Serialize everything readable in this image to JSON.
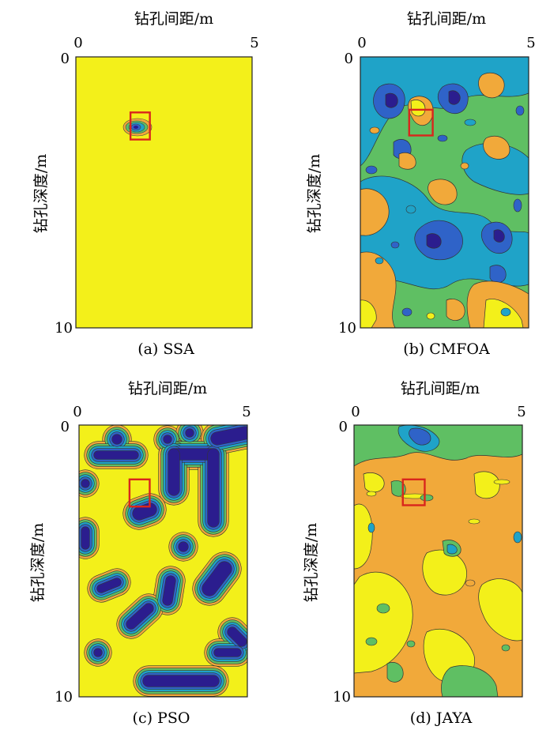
{
  "colors": {
    "deep": "#2b1d8e",
    "blue": "#2f63c8",
    "cyan": "#1fa3c8",
    "green": "#5fbf63",
    "orange": "#f1a93a",
    "yellow": "#f3f01a",
    "frame": "#222222",
    "marker": "#d9261c"
  },
  "chart_data": [
    {
      "type": "contour",
      "caption": "(a) SSA",
      "xlabel": "钻孔间距/m",
      "ylabel": "钻孔深度/m",
      "xlim": [
        0,
        5
      ],
      "ylim": [
        0,
        10
      ],
      "xticks": [
        "0",
        "5"
      ],
      "yticks": [
        "0",
        "10"
      ],
      "marker_box": {
        "x": [
          1.55,
          2.1
        ],
        "y": [
          2.05,
          3.05
        ]
      }
    },
    {
      "type": "contour",
      "caption": "(b) CMFOA",
      "xlabel": "钻孔间距/m",
      "ylabel": "钻孔深度/m",
      "xlim": [
        0,
        5
      ],
      "ylim": [
        0,
        10
      ],
      "xticks": [
        "0",
        "5"
      ],
      "yticks": [
        "0",
        "10"
      ],
      "marker_box": {
        "x": [
          1.45,
          2.15
        ],
        "y": [
          1.95,
          2.9
        ]
      }
    },
    {
      "type": "contour",
      "caption": "(c) PSO",
      "xlabel": "钻孔间距/m",
      "ylabel": "钻孔深度/m",
      "xlim": [
        0,
        5
      ],
      "ylim": [
        0,
        10
      ],
      "xticks": [
        "0",
        "5"
      ],
      "yticks": [
        "0",
        "10"
      ],
      "marker_box": {
        "x": [
          1.5,
          2.1
        ],
        "y": [
          2.0,
          3.0
        ]
      }
    },
    {
      "type": "contour",
      "caption": "(d) JAYA",
      "xlabel": "钻孔间距/m",
      "ylabel": "钻孔深度/m",
      "xlim": [
        0,
        5
      ],
      "ylim": [
        0,
        10
      ],
      "xticks": [
        "0",
        "5"
      ],
      "yticks": [
        "0",
        "10"
      ],
      "marker_box": {
        "x": [
          1.45,
          2.1
        ],
        "y": [
          2.0,
          2.95
        ]
      }
    }
  ]
}
